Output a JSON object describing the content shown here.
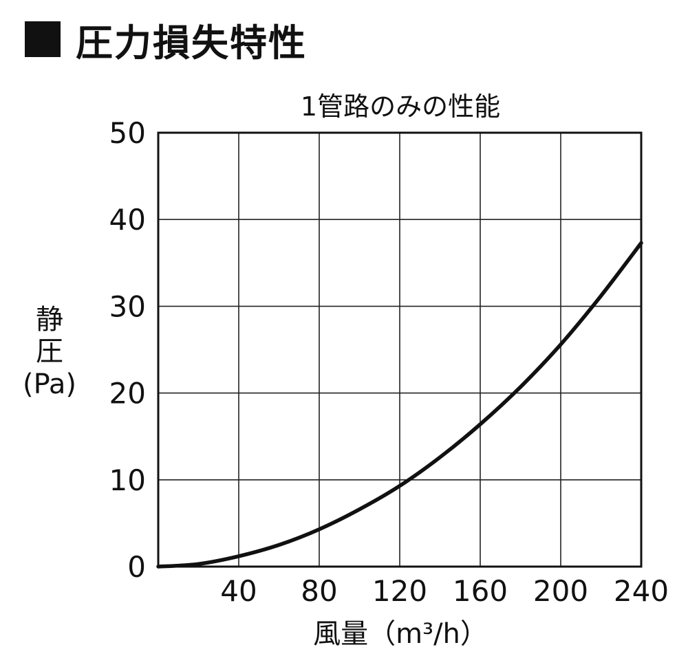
{
  "page": {
    "heading": "圧力損失特性"
  },
  "chart_data": {
    "type": "line",
    "title": "1管路のみの性能",
    "xlabel": "風量（m³/h）",
    "ylabel_lines": [
      "静",
      "圧",
      "(Pa)"
    ],
    "xlim": [
      0,
      240
    ],
    "ylim": [
      0,
      50
    ],
    "x_ticks": [
      40,
      80,
      120,
      160,
      200,
      240
    ],
    "y_ticks": [
      0,
      10,
      20,
      30,
      40,
      50
    ],
    "grid": true,
    "line_color": "#111111",
    "grid_color": "#222222",
    "series": [
      {
        "x": [
          0,
          20,
          40,
          60,
          80,
          100,
          120,
          140,
          160,
          180,
          200,
          220,
          240
        ],
        "values": [
          0,
          0.3,
          1.2,
          2.5,
          4.3,
          6.6,
          9.3,
          12.6,
          16.4,
          20.7,
          25.6,
          31.2,
          37.3
        ]
      }
    ]
  }
}
